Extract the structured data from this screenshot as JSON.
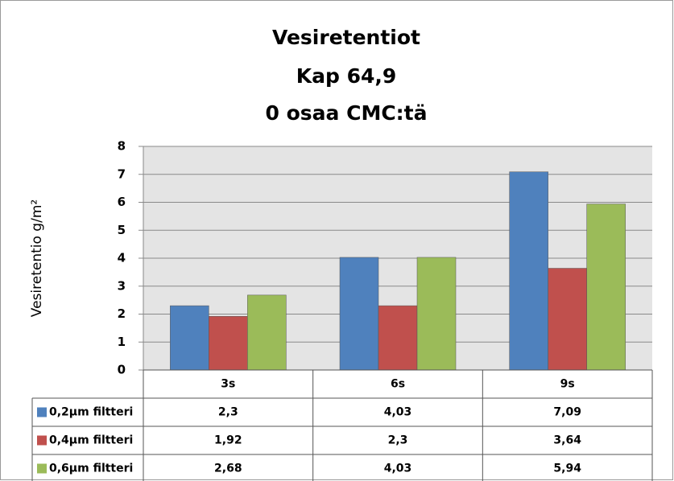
{
  "chart_data": {
    "type": "bar",
    "title": [
      "Vesiretentiot",
      "Kap 64,9",
      "0 osaa CMC:tä"
    ],
    "y_label": "Vesiretentio g/m²",
    "categories": [
      "3s",
      "6s",
      "9s"
    ],
    "series": [
      {
        "name": "0,2µm filtteri",
        "color": "#4f81bd",
        "values": [
          2.3,
          4.03,
          7.09
        ],
        "value_labels": [
          "2,3",
          "4,03",
          "7,09"
        ]
      },
      {
        "name": "0,4µm filtteri",
        "color": "#c0504d",
        "values": [
          1.92,
          2.3,
          3.64
        ],
        "value_labels": [
          "1,92",
          "2,3",
          "3,64"
        ]
      },
      {
        "name": "0,6µm filtteri",
        "color": "#9bbb59",
        "values": [
          2.68,
          4.03,
          5.94
        ],
        "value_labels": [
          "2,68",
          "4,03",
          "5,94"
        ]
      }
    ],
    "ylim": [
      0,
      8
    ],
    "yticks": [
      0,
      1,
      2,
      3,
      4,
      5,
      6,
      7,
      8
    ],
    "grid": true
  }
}
